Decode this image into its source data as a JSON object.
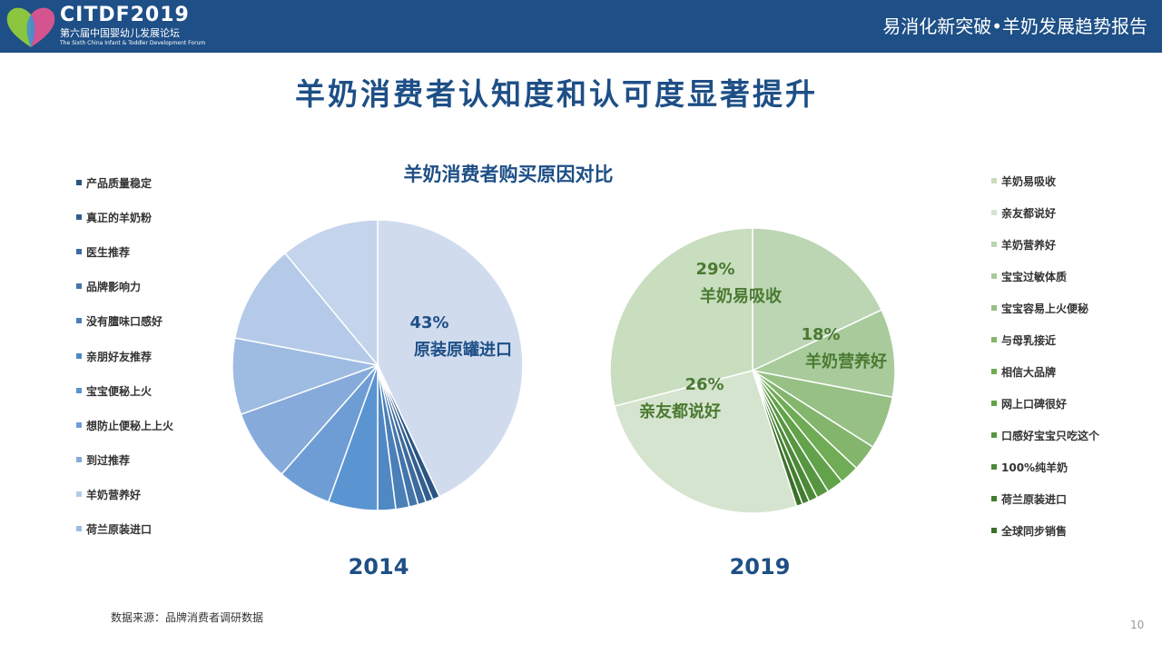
{
  "header": {
    "logo_main": "CITDF2019",
    "logo_sub_cn": "第六届中国婴幼儿发展论坛",
    "logo_sub_en": "The Sixth China Infant & Toddler Development Forum",
    "title_right": "易消化新突破•羊奶发展趋势报告"
  },
  "main_title": "羊奶消费者认知度和认可度显著提升",
  "footer": {
    "source": "数据来源：品牌消费者调研数据",
    "page_number": "10"
  },
  "chart_data": {
    "type": "pie",
    "title": "羊奶消费者购买原因对比",
    "charts": [
      {
        "year": "2014",
        "legend_position": "left",
        "legend": [
          "产品质量稳定",
          "真正的羊奶粉",
          "医生推荐",
          "品牌影响力",
          "没有膻味口感好",
          "亲朋好友推荐",
          "宝宝便秘上火",
          "想防止便秘上上火",
          "到过推荐",
          "羊奶营养好",
          "荷兰原装进口"
        ],
        "slices": [
          {
            "label": "原装原罐进口",
            "value": 43,
            "color": "#d0dcee"
          },
          {
            "label": "产品质量稳定",
            "value": 0.8,
            "color": "#2a5582"
          },
          {
            "label": "真正的羊奶粉",
            "value": 0.8,
            "color": "#335f90"
          },
          {
            "label": "医生推荐",
            "value": 0.9,
            "color": "#3d6b9e"
          },
          {
            "label": "品牌影响力",
            "value": 1.0,
            "color": "#4475ab"
          },
          {
            "label": "没有膻味口感好",
            "value": 1.5,
            "color": "#4a7fb8"
          },
          {
            "label": "亲朋好友推荐",
            "value": 2.0,
            "color": "#5088c4"
          },
          {
            "label": "宝宝便秘上火",
            "value": 5.5,
            "color": "#5a95d2"
          },
          {
            "label": "想防止便秘上上火",
            "value": 6.0,
            "color": "#6d9dd4"
          },
          {
            "label": "到过推荐",
            "value": 8.0,
            "color": "#86abda"
          },
          {
            "label": "荷兰原装进口",
            "value": 8.5,
            "color": "#9ebbe2"
          },
          {
            "label": "羊奶营养好",
            "value": 11.0,
            "color": "#b4cae8"
          },
          {
            "label": "",
            "value": 11.0,
            "color": "#c3d4ec"
          }
        ],
        "annotations": [
          {
            "percent": "43%",
            "label": "原装原罐进口"
          }
        ]
      },
      {
        "year": "2019",
        "legend_position": "right",
        "legend": [
          "羊奶易吸收",
          "亲友都说好",
          "羊奶营养好",
          "宝宝过敏体质",
          "宝宝容易上火便秘",
          "与母乳接近",
          "相信大品牌",
          "网上口碑很好",
          "口感好宝宝只吃这个",
          "100%纯羊奶",
          "荷兰原装进口",
          "全球同步销售"
        ],
        "slices": [
          {
            "label": "羊奶营养好",
            "value": 18,
            "color": "#bcd5b2"
          },
          {
            "label": "宝宝过敏体质",
            "value": 10,
            "color": "#a9cb9c"
          },
          {
            "label": "宝宝容易上火便秘",
            "value": 6,
            "color": "#96c084"
          },
          {
            "label": "与母乳接近",
            "value": 3,
            "color": "#83b56c"
          },
          {
            "label": "相信大品牌",
            "value": 2.2,
            "color": "#6fac55"
          },
          {
            "label": "网上口碑很好",
            "value": 1.9,
            "color": "#62a24a"
          },
          {
            "label": "口感好宝宝只吃这个",
            "value": 1.4,
            "color": "#579640"
          },
          {
            "label": "100%纯羊奶",
            "value": 1.0,
            "color": "#4c8a37"
          },
          {
            "label": "荷兰原装进口",
            "value": 0.8,
            "color": "#437e30"
          },
          {
            "label": "全球同步销售",
            "value": 0.7,
            "color": "#3a712a"
          },
          {
            "label": "亲友都说好",
            "value": 26,
            "color": "#d5e4ce"
          },
          {
            "label": "羊奶易吸收",
            "value": 29,
            "color": "#c9ddbf"
          }
        ],
        "annotations": [
          {
            "percent": "29%",
            "label": "羊奶易吸收"
          },
          {
            "percent": "18%",
            "label": "羊奶营养好"
          },
          {
            "percent": "26%",
            "label": "亲友都说好"
          }
        ]
      }
    ]
  }
}
